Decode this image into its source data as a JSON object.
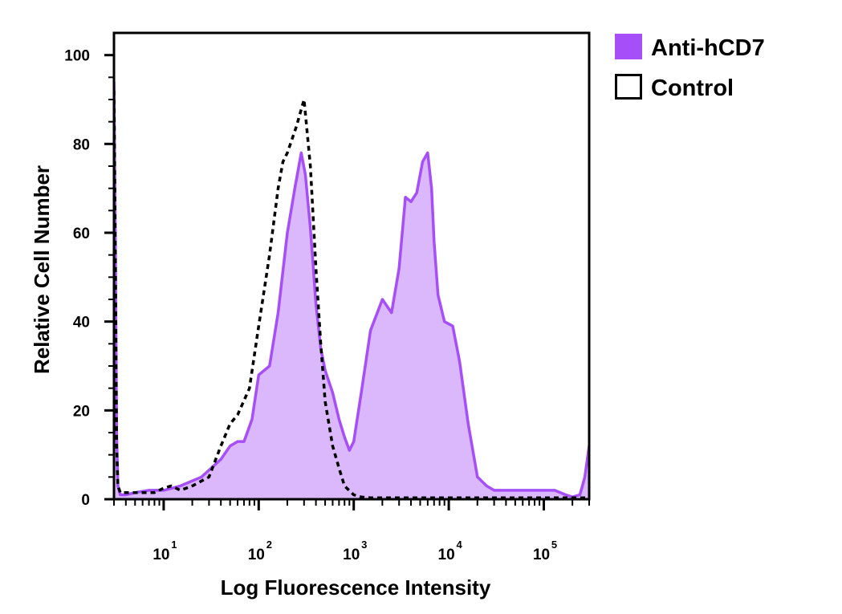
{
  "chart_data": {
    "type": "area",
    "xlabel": "Log Fluorescence Intensity",
    "ylabel": "Relative Cell Number",
    "x_scale": "log",
    "xlim": [
      3,
      300000
    ],
    "ylim": [
      0,
      105
    ],
    "x_ticks": [
      {
        "value": 10,
        "base": "10",
        "exp": "1"
      },
      {
        "value": 100,
        "base": "10",
        "exp": "2"
      },
      {
        "value": 1000,
        "base": "10",
        "exp": "3"
      },
      {
        "value": 10000,
        "base": "10",
        "exp": "4"
      },
      {
        "value": 100000,
        "base": "10",
        "exp": "5"
      }
    ],
    "y_ticks": [
      {
        "value": 0,
        "label": "0"
      },
      {
        "value": 20,
        "label": "20"
      },
      {
        "value": 40,
        "label": "40"
      },
      {
        "value": 60,
        "label": "60"
      },
      {
        "value": 80,
        "label": "80"
      },
      {
        "value": 100,
        "label": "100"
      }
    ],
    "legend_position": "top-right",
    "series": [
      {
        "name": "Anti-hCD7",
        "color": "#a64ef7",
        "fill": "#dbb8fb",
        "style": "filled",
        "x": [
          3,
          3.1,
          3.2,
          3.3,
          3.5,
          4,
          5,
          7,
          10,
          15,
          25,
          40,
          50,
          60,
          70,
          85,
          100,
          130,
          160,
          200,
          240,
          280,
          310,
          350,
          400,
          450,
          500,
          600,
          700,
          800,
          900,
          1000,
          1200,
          1500,
          2000,
          2500,
          3000,
          3500,
          4000,
          4600,
          5300,
          6000,
          6600,
          7000,
          7700,
          9000,
          11000,
          13000,
          16000,
          20000,
          25000,
          30000,
          40000,
          60000,
          80000,
          100000,
          130000,
          170000,
          200000,
          240000,
          270000,
          300000
        ],
        "values": [
          94,
          60,
          15,
          3,
          1,
          1,
          1.5,
          2,
          2,
          3,
          5,
          9,
          12,
          13,
          13,
          18,
          28,
          30,
          42,
          60,
          70,
          78,
          73,
          61,
          44,
          34,
          29,
          24,
          18,
          14,
          11,
          13,
          24,
          38,
          45,
          42,
          52,
          68,
          67,
          69,
          76,
          78,
          70,
          58,
          46,
          40,
          39,
          31,
          17,
          5,
          3,
          2,
          2,
          2,
          2,
          2,
          2,
          1,
          0.5,
          1,
          5,
          12
        ]
      },
      {
        "name": "Control",
        "color": "#000000",
        "style": "dashed",
        "x": [
          3,
          3.1,
          3.2,
          3.3,
          3.5,
          4,
          6,
          8,
          10,
          12,
          15,
          20,
          30,
          40,
          50,
          60,
          80,
          100,
          130,
          160,
          180,
          200,
          250,
          300,
          350,
          400,
          450,
          500,
          600,
          700,
          800,
          1000,
          1200,
          1500,
          2000,
          5000,
          20000,
          100000,
          300000
        ],
        "values": [
          92,
          55,
          12,
          3,
          1.5,
          1.5,
          1.5,
          1.5,
          2.5,
          3,
          2,
          3,
          5,
          12,
          17,
          19,
          25,
          39,
          55,
          70,
          76,
          78,
          84,
          90,
          75,
          52,
          35,
          22,
          12,
          7,
          3,
          1,
          0.5,
          0.3,
          0.3,
          0.3,
          0.3,
          0.3,
          0.3
        ]
      }
    ]
  }
}
